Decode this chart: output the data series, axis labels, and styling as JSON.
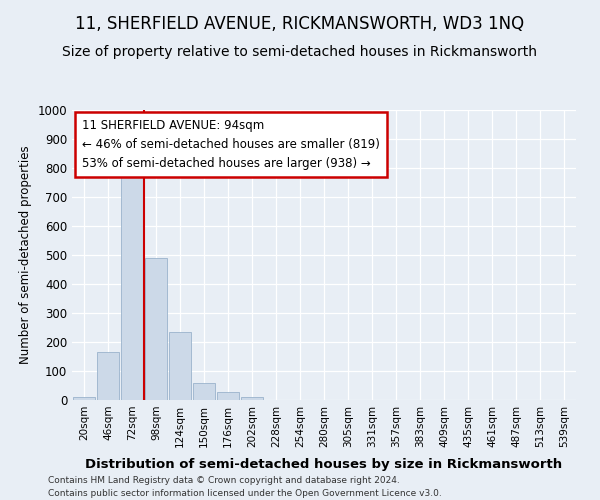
{
  "title1": "11, SHERFIELD AVENUE, RICKMANSWORTH, WD3 1NQ",
  "title2": "Size of property relative to semi-detached houses in Rickmansworth",
  "xlabel": "Distribution of semi-detached houses by size in Rickmansworth",
  "ylabel": "Number of semi-detached properties",
  "categories": [
    "20sqm",
    "46sqm",
    "72sqm",
    "98sqm",
    "124sqm",
    "150sqm",
    "176sqm",
    "202sqm",
    "228sqm",
    "254sqm",
    "280sqm",
    "305sqm",
    "331sqm",
    "357sqm",
    "383sqm",
    "409sqm",
    "435sqm",
    "461sqm",
    "487sqm",
    "513sqm",
    "539sqm"
  ],
  "values": [
    10,
    165,
    785,
    490,
    235,
    60,
    28,
    12,
    0,
    0,
    0,
    0,
    0,
    0,
    0,
    0,
    0,
    0,
    0,
    0,
    0
  ],
  "bar_color": "#ccd9e8",
  "bar_edge_color": "#9ab3cc",
  "vline_x": 2.5,
  "vline_color": "#cc0000",
  "annotation_text": "11 SHERFIELD AVENUE: 94sqm\n← 46% of semi-detached houses are smaller (819)\n53% of semi-detached houses are larger (938) →",
  "annotation_box_color": "#ffffff",
  "annotation_box_edge": "#cc0000",
  "ylim": [
    0,
    1000
  ],
  "yticks": [
    0,
    100,
    200,
    300,
    400,
    500,
    600,
    700,
    800,
    900,
    1000
  ],
  "footer1": "Contains HM Land Registry data © Crown copyright and database right 2024.",
  "footer2": "Contains public sector information licensed under the Open Government Licence v3.0.",
  "bg_color": "#e8eef5",
  "grid_color": "#ffffff",
  "title1_fontsize": 12,
  "title2_fontsize": 10,
  "ann_fontsize": 8.5
}
